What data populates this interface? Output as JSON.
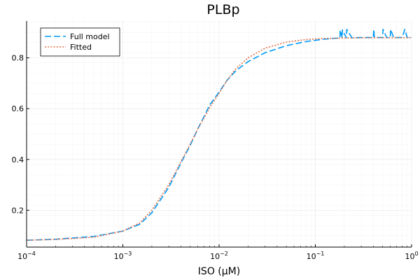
{
  "chart_data": {
    "type": "line",
    "title": "PLBp",
    "xlabel": "ISO (μM)",
    "ylabel": "",
    "x_scale": "log",
    "xlim": [
      0.0001,
      1
    ],
    "ylim": [
      0.055,
      0.945
    ],
    "grid": true,
    "legend_position": "top-left",
    "x_ticks": [
      {
        "value": 0.0001,
        "base": "10",
        "exp": "−4"
      },
      {
        "value": 0.001,
        "base": "10",
        "exp": "−3"
      },
      {
        "value": 0.01,
        "base": "10",
        "exp": "−2"
      },
      {
        "value": 0.1,
        "base": "10",
        "exp": "−1"
      },
      {
        "value": 1,
        "base": "10",
        "exp": "0"
      }
    ],
    "y_ticks": [
      {
        "value": 0.2,
        "label": "0.2"
      },
      {
        "value": 0.4,
        "label": "0.4"
      },
      {
        "value": 0.6,
        "label": "0.6"
      },
      {
        "value": 0.8,
        "label": "0.8"
      }
    ],
    "series": [
      {
        "name": "Full model",
        "color": "#009AFA",
        "dash": "dashed",
        "x": [
          0.0001,
          0.0002,
          0.0005,
          0.001,
          0.0015,
          0.002,
          0.003,
          0.004,
          0.005,
          0.006,
          0.007,
          0.008,
          0.01,
          0.012,
          0.015,
          0.02,
          0.03,
          0.05,
          0.08,
          0.12,
          0.16,
          0.18,
          0.181,
          0.19,
          0.191,
          0.21,
          0.212,
          0.24,
          0.3,
          0.4,
          0.405,
          0.41,
          0.5,
          0.505,
          0.55,
          0.6,
          0.605,
          0.65,
          0.7,
          0.8,
          0.85,
          0.9,
          1
        ],
        "y": [
          0.082,
          0.086,
          0.097,
          0.118,
          0.145,
          0.19,
          0.29,
          0.385,
          0.455,
          0.52,
          0.57,
          0.615,
          0.665,
          0.71,
          0.75,
          0.785,
          0.82,
          0.848,
          0.864,
          0.873,
          0.877,
          0.878,
          0.91,
          0.878,
          0.91,
          0.879,
          0.912,
          0.879,
          0.88,
          0.88,
          0.912,
          0.88,
          0.88,
          0.912,
          0.88,
          0.88,
          0.912,
          0.88,
          0.88,
          0.88,
          0.912,
          0.88,
          0.88
        ]
      },
      {
        "name": "Fitted",
        "color": "#E26F46",
        "dash": "dotted",
        "x": [
          0.0001,
          0.0002,
          0.0005,
          0.001,
          0.0015,
          0.002,
          0.003,
          0.004,
          0.005,
          0.006,
          0.007,
          0.008,
          0.01,
          0.012,
          0.015,
          0.02,
          0.03,
          0.05,
          0.08,
          0.12,
          0.2,
          0.4,
          1
        ],
        "y": [
          0.082,
          0.085,
          0.094,
          0.118,
          0.15,
          0.2,
          0.3,
          0.39,
          0.46,
          0.52,
          0.565,
          0.605,
          0.66,
          0.71,
          0.758,
          0.8,
          0.838,
          0.862,
          0.872,
          0.876,
          0.878,
          0.879,
          0.879
        ]
      }
    ]
  }
}
